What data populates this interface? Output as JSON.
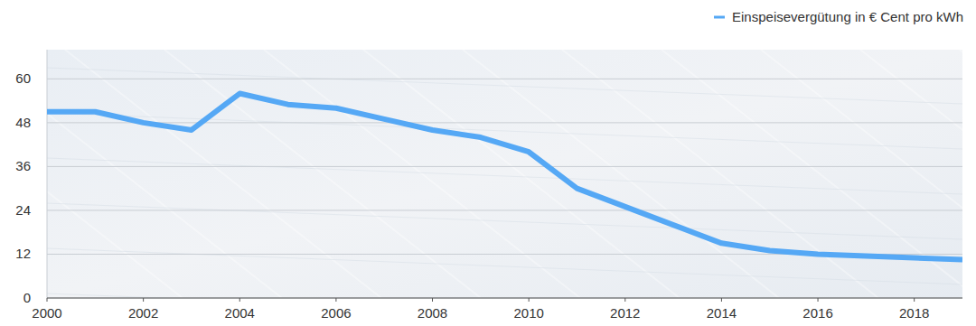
{
  "chart_data": {
    "type": "line",
    "x": [
      2000,
      2001,
      2002,
      2003,
      2004,
      2005,
      2006,
      2007,
      2008,
      2009,
      2010,
      2011,
      2012,
      2013,
      2014,
      2015,
      2016,
      2017,
      2018,
      2019
    ],
    "series": [
      {
        "name": "Einspeisevergütung in € Cent pro kWh",
        "color": "#55a8f5",
        "values": [
          51,
          51,
          48,
          46,
          56,
          53,
          52,
          49,
          46,
          44,
          40,
          30,
          25,
          20,
          15,
          13,
          12,
          11.5,
          11,
          10.5
        ]
      }
    ],
    "xlim": [
      2000,
      2019
    ],
    "xticks": [
      2000,
      2002,
      2004,
      2006,
      2008,
      2010,
      2012,
      2014,
      2016,
      2018
    ],
    "ylim": [
      0,
      68
    ],
    "yticks": [
      0,
      12,
      24,
      36,
      48,
      60
    ],
    "grid": true,
    "legend": "top-right"
  }
}
